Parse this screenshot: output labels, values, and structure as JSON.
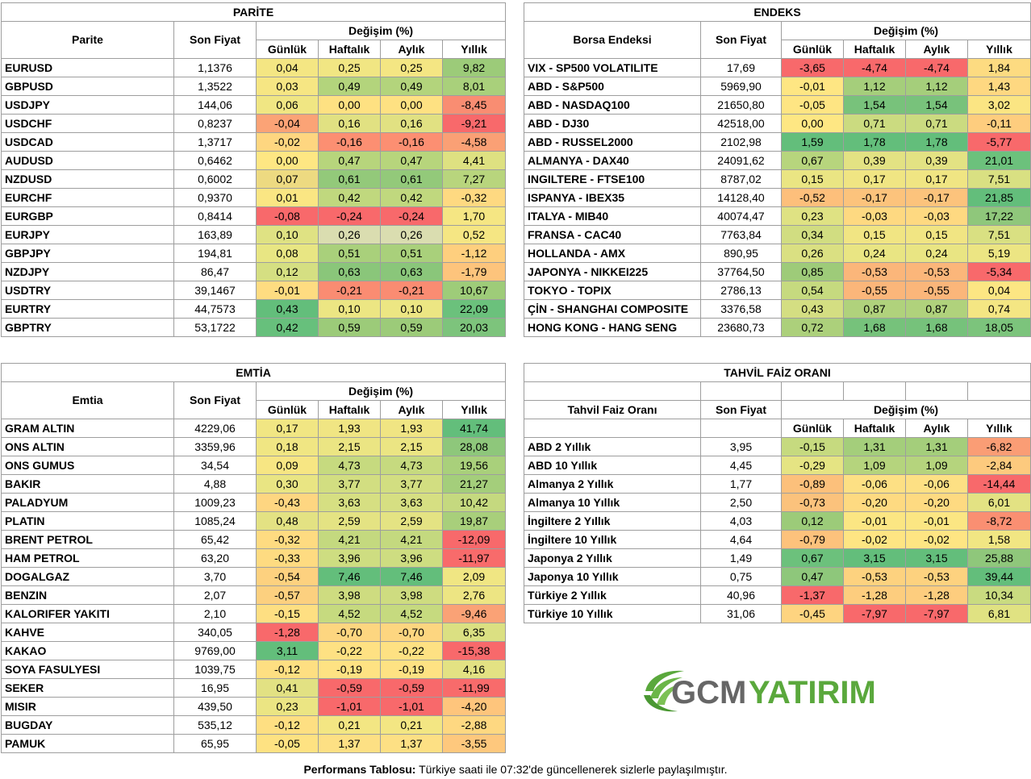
{
  "parite": {
    "title": "PARİTE",
    "col_name": "Parite",
    "col_price": "Son Fiyat",
    "col_change": "Değişim (%)",
    "periods": [
      "Günlük",
      "Haftalık",
      "Aylık",
      "Yıllık"
    ],
    "rows": [
      {
        "name": "EURUSD",
        "price": "1,1376",
        "values": [
          "0,04",
          "0,25",
          "0,25",
          "9,82"
        ]
      },
      {
        "name": "GBPUSD",
        "price": "1,3522",
        "values": [
          "0,03",
          "0,49",
          "0,49",
          "8,01"
        ]
      },
      {
        "name": "USDJPY",
        "price": "144,06",
        "values": [
          "0,06",
          "0,00",
          "0,00",
          "-8,45"
        ]
      },
      {
        "name": "USDCHF",
        "price": "0,8237",
        "values": [
          "-0,04",
          "0,16",
          "0,16",
          "-9,21"
        ]
      },
      {
        "name": "USDCAD",
        "price": "1,3717",
        "values": [
          "-0,02",
          "-0,16",
          "-0,16",
          "-4,58"
        ]
      },
      {
        "name": "AUDUSD",
        "price": "0,6462",
        "values": [
          "0,00",
          "0,47",
          "0,47",
          "4,41"
        ]
      },
      {
        "name": "NZDUSD",
        "price": "0,6002",
        "values": [
          "0,07",
          "0,61",
          "0,61",
          "7,27"
        ]
      },
      {
        "name": "EURCHF",
        "price": "0,9370",
        "values": [
          "0,01",
          "0,42",
          "0,42",
          "-0,32"
        ]
      },
      {
        "name": "EURGBP",
        "price": "0,8414",
        "values": [
          "-0,08",
          "-0,24",
          "-0,24",
          "1,70"
        ]
      },
      {
        "name": "EURJPY",
        "price": "163,89",
        "values": [
          "0,10",
          "0,26",
          "0,26",
          "0,52"
        ]
      },
      {
        "name": "GBPJPY",
        "price": "194,81",
        "values": [
          "0,08",
          "0,51",
          "0,51",
          "-1,12"
        ]
      },
      {
        "name": "NZDJPY",
        "price": "86,47",
        "values": [
          "0,12",
          "0,63",
          "0,63",
          "-1,79"
        ]
      },
      {
        "name": "USDTRY",
        "price": "39,1467",
        "values": [
          "-0,01",
          "-0,21",
          "-0,21",
          "10,67"
        ]
      },
      {
        "name": "EURTRY",
        "price": "44,7573",
        "values": [
          "0,43",
          "0,10",
          "0,10",
          "22,09"
        ]
      },
      {
        "name": "GBPTRY",
        "price": "53,1722",
        "values": [
          "0,42",
          "0,59",
          "0,59",
          "20,03"
        ]
      }
    ],
    "colors": [
      [
        "#f4e683",
        "#f1e683",
        "#f4e683",
        "#9ccb79"
      ],
      [
        "#f6e683",
        "#b3d47c",
        "#b3d47c",
        "#a9d07b"
      ],
      [
        "#f0e683",
        "#fee182",
        "#fee182",
        "#f98d72"
      ],
      [
        "#fba376",
        "#e1e182",
        "#e1e182",
        "#f8696b"
      ],
      [
        "#fed680",
        "#fc8f72",
        "#fc8f72",
        "#faa075"
      ],
      [
        "#fee783",
        "#b7d57c",
        "#b7d57c",
        "#dee181"
      ],
      [
        "#edda81",
        "#93c97a",
        "#93c97a",
        "#b8d57d"
      ],
      [
        "#fae683",
        "#c0d87e",
        "#c0d87e",
        "#fed981"
      ],
      [
        "#f8696b",
        "#f8696b",
        "#f8696b",
        "#f5e683"
      ],
      [
        "#dfe283",
        "#daddb0",
        "#daddb0",
        "#f5e683"
      ],
      [
        "#e8e683",
        "#a9d07b",
        "#a9d07b",
        "#fecf7e"
      ],
      [
        "#d5df82",
        "#8ac67a",
        "#8ac67a",
        "#fdc47c"
      ],
      [
        "#fedc81",
        "#fa8c72",
        "#fa8c72",
        "#9ecc79"
      ],
      [
        "#63be7b",
        "#ece683",
        "#ece683",
        "#6bc17c"
      ],
      [
        "#67c07c",
        "#9ccb79",
        "#9ccb79",
        "#7dc47c"
      ]
    ]
  },
  "endeks": {
    "title": "ENDEKS",
    "col_name": "Borsa Endeksi",
    "col_price": "Son Fiyat",
    "col_change": "Değişim (%)",
    "periods": [
      "Günlük",
      "Haftalık",
      "Aylık",
      "Yıllık"
    ],
    "rows": [
      {
        "name": "VIX  - SP500 VOLATILITE",
        "price": "17,69",
        "values": [
          "-3,65",
          "-4,74",
          "-4,74",
          "1,84"
        ]
      },
      {
        "name": "ABD - S&P500",
        "price": "5969,90",
        "values": [
          "-0,01",
          "1,12",
          "1,12",
          "1,43"
        ]
      },
      {
        "name": "ABD - NASDAQ100",
        "price": "21650,80",
        "values": [
          "-0,05",
          "1,54",
          "1,54",
          "3,02"
        ]
      },
      {
        "name": "ABD - DJ30",
        "price": "42518,00",
        "values": [
          "0,00",
          "0,71",
          "0,71",
          "-0,11"
        ]
      },
      {
        "name": "ABD - RUSSEL2000",
        "price": "2102,98",
        "values": [
          "1,59",
          "1,78",
          "1,78",
          "-5,77"
        ]
      },
      {
        "name": "ALMANYA - DAX40",
        "price": "24091,62",
        "values": [
          "0,67",
          "0,39",
          "0,39",
          "21,01"
        ]
      },
      {
        "name": "INGILTERE - FTSE100",
        "price": "8787,02",
        "values": [
          "0,15",
          "0,17",
          "0,17",
          "7,51"
        ]
      },
      {
        "name": "ISPANYA - IBEX35",
        "price": "14128,40",
        "values": [
          "-0,52",
          "-0,17",
          "-0,17",
          "21,85"
        ]
      },
      {
        "name": "ITALYA - MIB40",
        "price": "40074,47",
        "values": [
          "0,23",
          "-0,03",
          "-0,03",
          "17,22"
        ]
      },
      {
        "name": "FRANSA - CAC40",
        "price": "7763,84",
        "values": [
          "0,34",
          "0,15",
          "0,15",
          "7,51"
        ]
      },
      {
        "name": "HOLLANDA - AMX",
        "price": "890,95",
        "values": [
          "0,26",
          "0,24",
          "0,24",
          "5,19"
        ]
      },
      {
        "name": "JAPONYA - NIKKEI225",
        "price": "37764,50",
        "values": [
          "0,85",
          "-0,53",
          "-0,53",
          "-5,34"
        ]
      },
      {
        "name": "TOKYO - TOPIX",
        "price": "2786,13",
        "values": [
          "0,54",
          "-0,55",
          "-0,55",
          "0,04"
        ]
      },
      {
        "name": "ÇİN - SHANGHAI COMPOSITE",
        "price": "3376,58",
        "values": [
          "0,43",
          "0,87",
          "0,87",
          "0,74"
        ]
      },
      {
        "name": "HONG KONG - HANG SENG",
        "price": "23680,73",
        "values": [
          "0,72",
          "1,68",
          "1,68",
          "18,05"
        ]
      }
    ],
    "colors": [
      [
        "#f8696b",
        "#f8696b",
        "#f8696b",
        "#fddb81"
      ],
      [
        "#fee683",
        "#a5ce7b",
        "#a5ce7b",
        "#fed881"
      ],
      [
        "#fee583",
        "#78c27b",
        "#78c27b",
        "#fbe583"
      ],
      [
        "#fee783",
        "#cbdb80",
        "#cbdb80",
        "#fecd7e"
      ],
      [
        "#63be7b",
        "#63be7b",
        "#63be7b",
        "#f8696b"
      ],
      [
        "#b7d57d",
        "#e3e283",
        "#e3e283",
        "#6cc17c"
      ],
      [
        "#eae583",
        "#f0e583",
        "#f0e583",
        "#d9e082"
      ],
      [
        "#fdbf7b",
        "#fcc37c",
        "#fcc37c",
        "#63be7b"
      ],
      [
        "#dfe283",
        "#fed981",
        "#fed981",
        "#8fc77b"
      ],
      [
        "#d1dd81",
        "#f1e583",
        "#f1e583",
        "#d9e082"
      ],
      [
        "#dae082",
        "#e9e583",
        "#e9e583",
        "#ece583"
      ],
      [
        "#9ecb79",
        "#fbb67a",
        "#fbb67a",
        "#f8696b"
      ],
      [
        "#c6da7f",
        "#fbb67a",
        "#fbb67a",
        "#fce683"
      ],
      [
        "#d4de82",
        "#b0d27c",
        "#b0d27c",
        "#f4e683"
      ],
      [
        "#acd07b",
        "#76c27b",
        "#76c27b",
        "#7cc47c"
      ]
    ]
  },
  "emtia": {
    "title": "EMTİA",
    "col_name": "Emtia",
    "col_price": "Son Fiyat",
    "col_change": "Değişim (%)",
    "periods": [
      "Günlük",
      "Haftalık",
      "Aylık",
      "Yıllık"
    ],
    "rows": [
      {
        "name": "GRAM ALTIN",
        "price": "4229,06",
        "values": [
          "0,17",
          "1,93",
          "1,93",
          "41,74"
        ]
      },
      {
        "name": "ONS ALTIN",
        "price": "3359,96",
        "values": [
          "0,18",
          "2,15",
          "2,15",
          "28,08"
        ]
      },
      {
        "name": "ONS GUMUS",
        "price": "34,54",
        "values": [
          "0,09",
          "4,73",
          "4,73",
          "19,56"
        ]
      },
      {
        "name": "BAKIR",
        "price": "4,88",
        "values": [
          "0,30",
          "3,77",
          "3,77",
          "21,27"
        ]
      },
      {
        "name": "PALADYUM",
        "price": "1009,23",
        "values": [
          "-0,43",
          "3,63",
          "3,63",
          "10,42"
        ]
      },
      {
        "name": "PLATIN",
        "price": "1085,24",
        "values": [
          "0,48",
          "2,59",
          "2,59",
          "19,87"
        ]
      },
      {
        "name": "BRENT PETROL",
        "price": "65,42",
        "values": [
          "-0,32",
          "4,21",
          "4,21",
          "-12,09"
        ]
      },
      {
        "name": "HAM PETROL",
        "price": "63,20",
        "values": [
          "-0,33",
          "3,96",
          "3,96",
          "-11,97"
        ]
      },
      {
        "name": "DOGALGAZ",
        "price": "3,70",
        "values": [
          "-0,54",
          "7,46",
          "7,46",
          "2,09"
        ]
      },
      {
        "name": "BENZIN",
        "price": "2,07",
        "values": [
          "-0,57",
          "3,98",
          "3,98",
          "2,76"
        ]
      },
      {
        "name": "KALORIFER YAKITI",
        "price": "2,10",
        "values": [
          "-0,15",
          "4,52",
          "4,52",
          "-9,46"
        ]
      },
      {
        "name": "KAHVE",
        "price": "340,05",
        "values": [
          "-1,28",
          "-0,70",
          "-0,70",
          "6,35"
        ]
      },
      {
        "name": "KAKAO",
        "price": "9769,00",
        "values": [
          "3,11",
          "-0,22",
          "-0,22",
          "-15,38"
        ]
      },
      {
        "name": "SOYA FASULYESI",
        "price": "1039,75",
        "values": [
          "-0,12",
          "-0,19",
          "-0,19",
          "4,16"
        ]
      },
      {
        "name": "SEKER",
        "price": "16,95",
        "values": [
          "0,41",
          "-0,59",
          "-0,59",
          "-11,99"
        ]
      },
      {
        "name": "MISIR",
        "price": "439,50",
        "values": [
          "0,23",
          "-1,01",
          "-1,01",
          "-4,20"
        ]
      },
      {
        "name": "BUGDAY",
        "price": "535,12",
        "values": [
          "-0,12",
          "0,21",
          "0,21",
          "-2,88"
        ]
      },
      {
        "name": "PAMUK",
        "price": "65,95",
        "values": [
          "-0,05",
          "1,37",
          "1,37",
          "-3,55"
        ]
      }
    ],
    "colors": [
      [
        "#f1e683",
        "#f0e583",
        "#f0e583",
        "#63be7b"
      ],
      [
        "#f0e683",
        "#ebe583",
        "#ebe583",
        "#8ec77b"
      ],
      [
        "#f7e683",
        "#c6da7f",
        "#c6da7f",
        "#a9d07b"
      ],
      [
        "#e9e583",
        "#d2de81",
        "#d2de81",
        "#a4ce7b"
      ],
      [
        "#fed681",
        "#d6df82",
        "#d6df82",
        "#c5d97f"
      ],
      [
        "#e3e283",
        "#e4e383",
        "#e4e383",
        "#a8cf7b"
      ],
      [
        "#fedb81",
        "#c4d97f",
        "#c4d97f",
        "#f8696b"
      ],
      [
        "#fedb81",
        "#cedd81",
        "#cedd81",
        "#f86b6b"
      ],
      [
        "#fdd17f",
        "#63be7b",
        "#63be7b",
        "#f0e683"
      ],
      [
        "#fcd07f",
        "#cedc80",
        "#cedc80",
        "#ede583"
      ],
      [
        "#fedf82",
        "#c6da7f",
        "#c6da7f",
        "#faa276"
      ],
      [
        "#f8696b",
        "#fdd680",
        "#fdd680",
        "#dbe082"
      ],
      [
        "#63be7b",
        "#fee183",
        "#fee183",
        "#f8696b"
      ],
      [
        "#fedf82",
        "#fee283",
        "#fee283",
        "#e3e283"
      ],
      [
        "#e2e183",
        "#f8696b",
        "#f8696b",
        "#f86b6b"
      ],
      [
        "#ebe583",
        "#f8696b",
        "#f8696b",
        "#fec57c"
      ],
      [
        "#fedf82",
        "#f3e683",
        "#f3e683",
        "#fed881"
      ],
      [
        "#fee282",
        "#fde084",
        "#fde084",
        "#fec87d"
      ]
    ]
  },
  "tahvil": {
    "title": "TAHVİL FAİZ ORANI",
    "col_name": "Tahvil Faiz Oranı",
    "col_price": "Son Fiyat",
    "col_change": "Değişim (%)",
    "periods": [
      "Günlük",
      "Haftalık",
      "Aylık",
      "Yıllık"
    ],
    "rows": [
      {
        "name": "ABD 2 Yıllık",
        "price": "3,95",
        "values": [
          "-0,15",
          "1,31",
          "1,31",
          "-6,82"
        ]
      },
      {
        "name": "ABD 10 Yıllık",
        "price": "4,45",
        "values": [
          "-0,29",
          "1,09",
          "1,09",
          "-2,84"
        ]
      },
      {
        "name": "Almanya 2 Yıllık",
        "price": "1,77",
        "values": [
          "-0,89",
          "-0,06",
          "-0,06",
          "-14,44"
        ]
      },
      {
        "name": "Almanya 10 Yıllık",
        "price": "2,50",
        "values": [
          "-0,73",
          "-0,20",
          "-0,20",
          "6,01"
        ]
      },
      {
        "name": "İngiltere 2 Yıllık",
        "price": "4,03",
        "values": [
          "0,12",
          "-0,01",
          "-0,01",
          "-8,72"
        ]
      },
      {
        "name": "İngiltere 10 Yıllık",
        "price": "4,64",
        "values": [
          "-0,79",
          "-0,02",
          "-0,02",
          "1,58"
        ]
      },
      {
        "name": "Japonya 2 Yıllık",
        "price": "1,49",
        "values": [
          "0,67",
          "3,15",
          "3,15",
          "25,88"
        ]
      },
      {
        "name": "Japonya 10 Yıllık",
        "price": "0,75",
        "values": [
          "0,47",
          "-0,53",
          "-0,53",
          "39,44"
        ]
      },
      {
        "name": "Türkiye 2 Yıllık",
        "price": "40,96",
        "values": [
          "-1,37",
          "-1,28",
          "-1,28",
          "10,34"
        ]
      },
      {
        "name": "Türkiye 10 Yıllık",
        "price": "31,06",
        "values": [
          "-0,45",
          "-7,97",
          "-7,97",
          "6,81"
        ]
      }
    ],
    "colors": [
      [
        "#c6da7f",
        "#a4ce7b",
        "#a4ce7b",
        "#fa9d75"
      ],
      [
        "#e5e483",
        "#b5d47d",
        "#b5d47d",
        "#fdca7e"
      ],
      [
        "#fcc07b",
        "#fde084",
        "#fde084",
        "#f8696b"
      ],
      [
        "#fbc27c",
        "#feda81",
        "#feda81",
        "#e3e283"
      ],
      [
        "#9ccb79",
        "#fbe683",
        "#fbe683",
        "#fa8f72"
      ],
      [
        "#fdc27c",
        "#fee583",
        "#fee583",
        "#f1e683"
      ],
      [
        "#6cc17c",
        "#63be7b",
        "#63be7b",
        "#8fc77b"
      ],
      [
        "#8ec77b",
        "#fdd27f",
        "#fdd27f",
        "#63be7b"
      ],
      [
        "#f8696b",
        "#fdcd7e",
        "#fdcd7e",
        "#c9db80"
      ],
      [
        "#fed480",
        "#f8696b",
        "#f8696b",
        "#e0e282"
      ]
    ]
  },
  "logo": {
    "text_gcm": "GCM",
    "text_yatirim": "YATIRIM",
    "green": "#5aa83c",
    "gray": "#666666"
  },
  "footer": {
    "label": "Performans Tablosu:",
    "text": " Türkiye saati ile 07:32'de güncellenerek sizlerle paylaşılmıştır."
  }
}
